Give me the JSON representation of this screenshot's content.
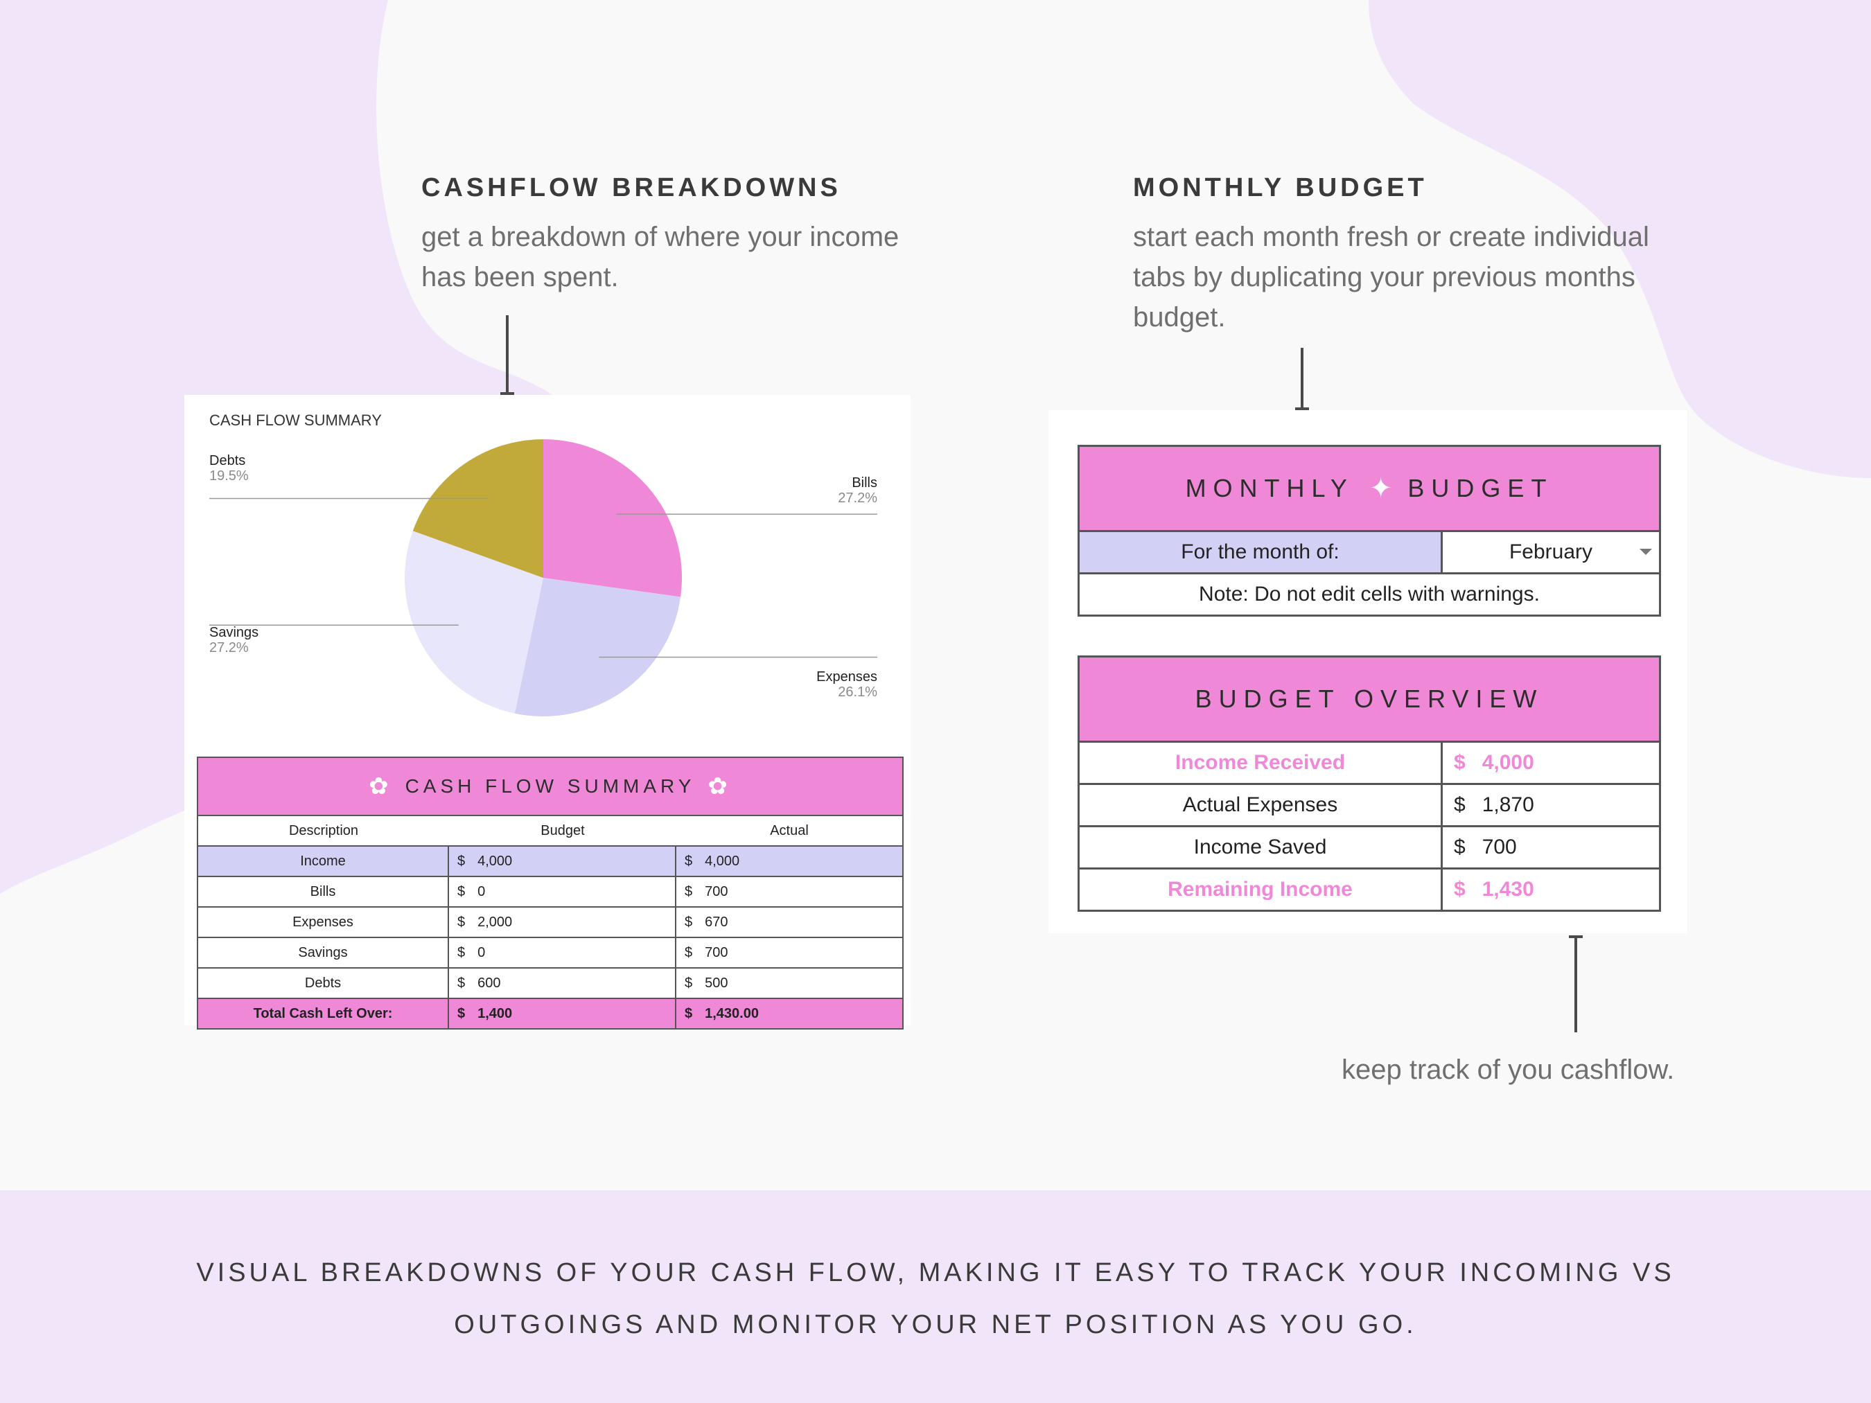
{
  "cashflow_section": {
    "heading": "CASHFLOW BREAKDOWNS",
    "description_line1": "get a breakdown of where your income",
    "description_line2": "has been spent."
  },
  "monthly_section": {
    "heading": "MONTHLY BUDGET",
    "description_line1": "start each month fresh or create individual",
    "description_line2": "tabs by duplicating your previous months",
    "description_line3": "budget."
  },
  "cashflow_note": "keep track of you cashflow.",
  "footer": {
    "line1": "VISUAL BREAKDOWNS OF YOUR CASH FLOW, MAKING IT EASY TO TRACK YOUR INCOMING VS",
    "line2": "OUTGOINGS AND MONITOR YOUR NET POSITION AS YOU GO."
  },
  "chart_data": {
    "type": "pie",
    "title": "CASH FLOW SUMMARY",
    "categories": [
      "Bills",
      "Expenses",
      "Savings",
      "Debts"
    ],
    "values": [
      27.2,
      26.1,
      27.2,
      19.5
    ],
    "labels": [
      "27.2%",
      "26.1%",
      "27.2%",
      "19.5%"
    ],
    "colors": [
      "#f088d8",
      "#d2d0f4",
      "#e8e6fb",
      "#c2aa3a"
    ]
  },
  "cashflow_table": {
    "title": "CASH FLOW SUMMARY",
    "headers": [
      "Description",
      "Budget",
      "Actual"
    ],
    "currency": "$",
    "rows": [
      {
        "desc": "Income",
        "budget": "4,000",
        "actual": "4,000"
      },
      {
        "desc": "Bills",
        "budget": "0",
        "actual": "700"
      },
      {
        "desc": "Expenses",
        "budget": "2,000",
        "actual": "670"
      },
      {
        "desc": "Savings",
        "budget": "0",
        "actual": "700"
      },
      {
        "desc": "Debts",
        "budget": "600",
        "actual": "500"
      }
    ],
    "total": {
      "desc": "Total Cash Left Over:",
      "budget": "1,400",
      "actual": "1,430.00"
    }
  },
  "monthly_budget": {
    "title_left": "MONTHLY",
    "title_right": "BUDGET",
    "month_label": "For the month of:",
    "month_value": "February",
    "note": "Note: Do not edit cells with warnings."
  },
  "budget_overview": {
    "title": "BUDGET OVERVIEW",
    "currency": "$",
    "rows": [
      {
        "label": "Income Received",
        "value": "4,000"
      },
      {
        "label": "Actual Expenses",
        "value": "1,870"
      },
      {
        "label": "Income Saved",
        "value": "700"
      },
      {
        "label": "Remaining Income",
        "value": "1,430"
      }
    ]
  },
  "colors": {
    "accent_pink": "#f088d8",
    "lavender": "#d2d0f4",
    "light_lavender": "#e8e6fb",
    "mustard": "#c2aa3a",
    "background_purple": "#f1e6f9"
  }
}
